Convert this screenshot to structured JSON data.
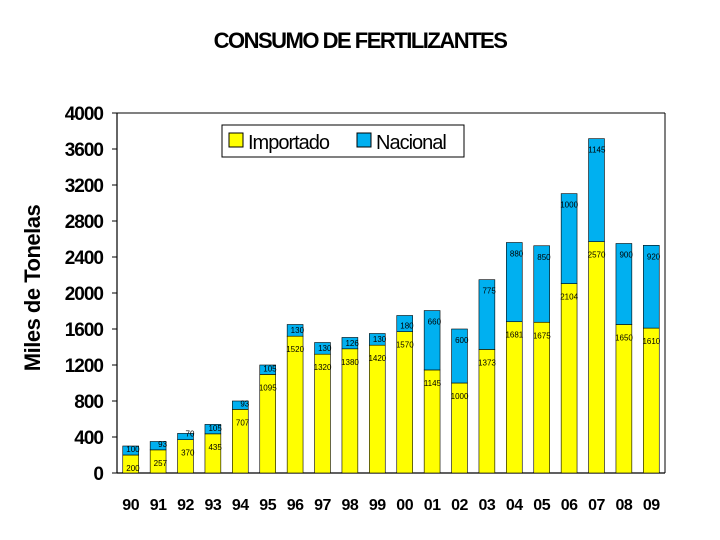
{
  "chart_data": {
    "type": "bar",
    "stacked": true,
    "title": "CONSUMO DE FERTILIZANTES",
    "xlabel": "",
    "ylabel": "Miles de Tonelas",
    "ylim": [
      0,
      4000
    ],
    "yticks": [
      0,
      400,
      800,
      1200,
      1600,
      2000,
      2400,
      2800,
      3200,
      3600,
      4000
    ],
    "gridlines": false,
    "legend_position": "top",
    "categories": [
      "90",
      "91",
      "92",
      "93",
      "94",
      "95",
      "96",
      "97",
      "98",
      "99",
      "00",
      "01",
      "02",
      "03",
      "04",
      "05",
      "06",
      "07",
      "08",
      "09"
    ],
    "series": [
      {
        "name": "Importado",
        "color": "#ffff00",
        "values": [
          200,
          257,
          370,
          435,
          707,
          1095,
          1520,
          1320,
          1380,
          1420,
          1570,
          1145,
          1000,
          1373,
          1681,
          1675,
          2104,
          2570,
          1650,
          1610
        ]
      },
      {
        "name": "Nacional",
        "color": "#00b0f0",
        "values": [
          100,
          93,
          70,
          105,
          93,
          105,
          130,
          130,
          126,
          130,
          180,
          660,
          600,
          775,
          880,
          850,
          1000,
          1145,
          900,
          920
        ]
      }
    ]
  }
}
